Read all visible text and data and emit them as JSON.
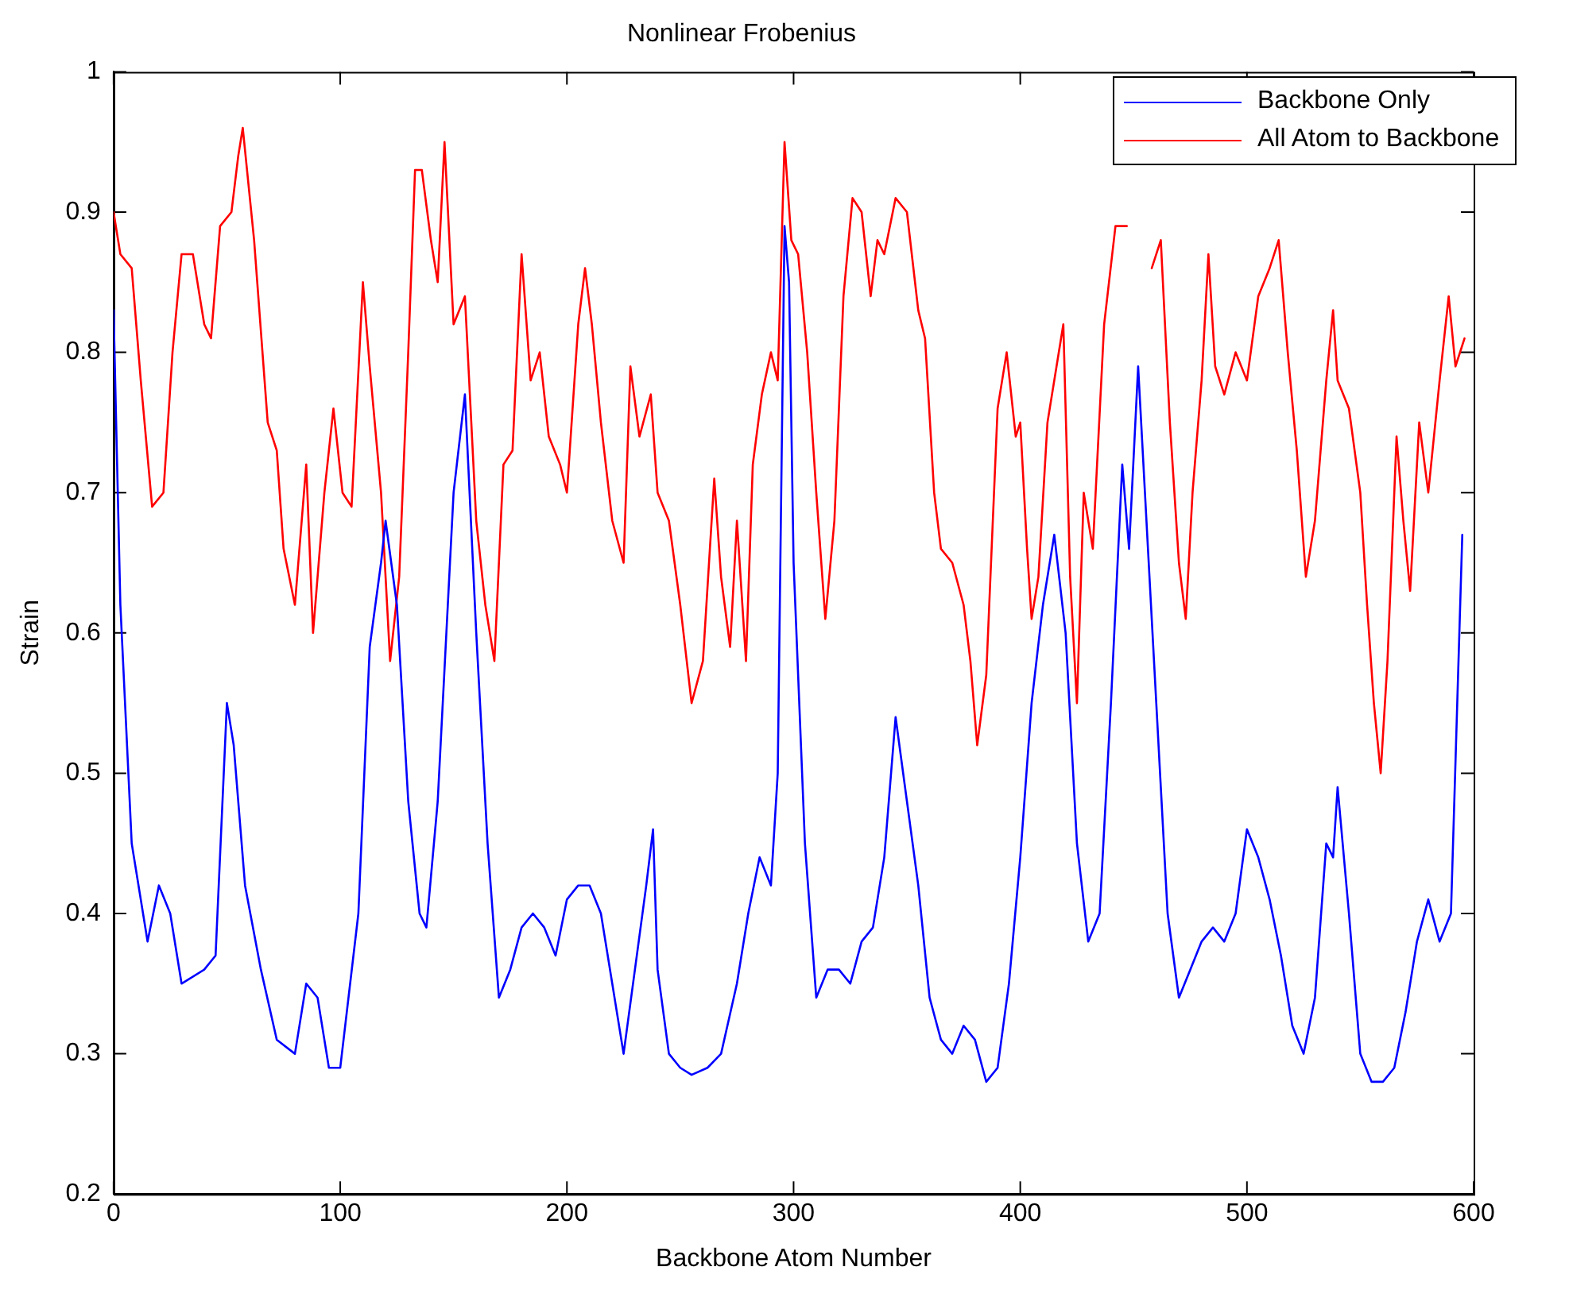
{
  "chart_data": {
    "type": "line",
    "title": "Nonlinear Frobenius",
    "xlabel": "Backbone Atom Number",
    "ylabel": "Strain",
    "xlim": [
      0,
      600
    ],
    "xticks": [
      0,
      100,
      200,
      300,
      400,
      500,
      600
    ],
    "ylim": [
      0.2,
      1
    ],
    "yticks": [
      0.2,
      0.3,
      0.4,
      0.5,
      0.6,
      0.7,
      0.8,
      0.9,
      1
    ],
    "grid": false,
    "legend": "top right",
    "marker": "none",
    "line_style": "solid",
    "series": [
      {
        "name": "Backbone Only",
        "color": "#0000ff",
        "x": [
          0,
          3,
          8,
          15,
          20,
          25,
          30,
          40,
          45,
          50,
          53,
          58,
          65,
          72,
          80,
          85,
          90,
          95,
          100,
          108,
          113,
          118,
          120,
          125,
          130,
          135,
          138,
          143,
          150,
          155,
          160,
          165,
          170,
          175,
          180,
          185,
          190,
          195,
          200,
          205,
          210,
          215,
          220,
          225,
          230,
          235,
          238,
          240,
          245,
          250,
          255,
          262,
          268,
          275,
          280,
          285,
          290,
          293,
          296,
          298,
          300,
          305,
          310,
          315,
          320,
          325,
          330,
          335,
          340,
          345,
          350,
          355,
          360,
          365,
          370,
          375,
          380,
          385,
          390,
          395,
          400,
          405,
          410,
          415,
          420,
          425,
          430,
          435,
          440,
          445,
          448,
          452,
          455,
          460,
          465,
          470,
          475,
          480,
          485,
          490,
          495,
          500,
          505,
          510,
          515,
          520,
          525,
          530,
          535,
          538,
          540,
          545,
          550,
          555,
          560,
          565,
          570,
          575,
          580,
          585,
          590,
          595
        ],
        "values": [
          0.83,
          0.62,
          0.45,
          0.38,
          0.42,
          0.4,
          0.35,
          0.36,
          0.37,
          0.55,
          0.52,
          0.42,
          0.36,
          0.31,
          0.3,
          0.35,
          0.34,
          0.29,
          0.29,
          0.4,
          0.59,
          0.65,
          0.68,
          0.62,
          0.48,
          0.4,
          0.39,
          0.48,
          0.7,
          0.77,
          0.6,
          0.45,
          0.34,
          0.36,
          0.39,
          0.4,
          0.39,
          0.37,
          0.41,
          0.42,
          0.42,
          0.4,
          0.35,
          0.3,
          0.36,
          0.42,
          0.46,
          0.36,
          0.3,
          0.29,
          0.285,
          0.29,
          0.3,
          0.35,
          0.4,
          0.44,
          0.42,
          0.5,
          0.89,
          0.85,
          0.65,
          0.45,
          0.34,
          0.36,
          0.36,
          0.35,
          0.38,
          0.39,
          0.44,
          0.54,
          0.48,
          0.42,
          0.34,
          0.31,
          0.3,
          0.32,
          0.31,
          0.28,
          0.29,
          0.35,
          0.44,
          0.55,
          0.62,
          0.67,
          0.6,
          0.45,
          0.38,
          0.4,
          0.55,
          0.72,
          0.66,
          0.79,
          0.7,
          0.55,
          0.4,
          0.34,
          0.36,
          0.38,
          0.39,
          0.38,
          0.4,
          0.46,
          0.44,
          0.41,
          0.37,
          0.32,
          0.3,
          0.34,
          0.45,
          0.44,
          0.49,
          0.4,
          0.3,
          0.28,
          0.28,
          0.29,
          0.33,
          0.38,
          0.41,
          0.38,
          0.4,
          0.67
        ]
      },
      {
        "name": "All Atom to Backbone",
        "color": "#ff0000",
        "x": [
          0,
          3,
          8,
          12,
          17,
          22,
          26,
          30,
          35,
          40,
          43,
          47,
          52,
          55,
          57,
          62,
          68,
          72,
          75,
          80,
          85,
          88,
          93,
          97,
          101,
          105,
          110,
          113,
          118,
          122,
          126,
          130,
          133,
          136,
          140,
          143,
          146,
          150,
          155,
          160,
          164,
          168,
          172,
          176,
          180,
          184,
          188,
          192,
          197,
          200,
          205,
          208,
          211,
          215,
          220,
          225,
          228,
          232,
          237,
          240,
          245,
          250,
          255,
          260,
          265,
          268,
          272,
          275,
          279,
          282,
          286,
          290,
          293,
          296,
          299,
          302,
          306,
          310,
          314,
          318,
          322,
          326,
          330,
          334,
          337,
          340,
          345,
          350,
          355,
          358,
          362,
          365,
          370,
          375,
          378,
          381,
          385,
          390,
          394,
          398,
          400,
          403,
          405,
          408,
          412,
          416,
          419,
          422,
          425,
          428,
          432,
          437,
          442,
          447,
          450,
          455,
          458,
          462,
          466,
          470,
          473,
          476,
          480,
          483,
          486,
          490,
          495,
          500,
          505,
          510,
          514,
          518,
          522,
          526,
          530,
          535,
          538,
          540,
          545,
          550,
          553,
          556,
          559,
          562,
          566,
          569,
          572,
          576,
          580,
          585,
          589,
          592,
          596
        ],
        "values": [
          0.9,
          0.87,
          0.86,
          0.78,
          0.69,
          0.7,
          0.8,
          0.87,
          0.87,
          0.82,
          0.81,
          0.89,
          0.9,
          0.94,
          0.96,
          0.88,
          0.75,
          0.73,
          0.66,
          0.62,
          0.72,
          0.6,
          0.7,
          0.76,
          0.7,
          0.69,
          0.85,
          0.79,
          0.7,
          0.58,
          0.64,
          0.8,
          0.93,
          0.93,
          0.88,
          0.85,
          0.95,
          0.82,
          0.84,
          0.68,
          0.62,
          0.58,
          0.72,
          0.73,
          0.87,
          0.78,
          0.8,
          0.74,
          0.72,
          0.7,
          0.82,
          0.86,
          0.82,
          0.75,
          0.68,
          0.65,
          0.79,
          0.74,
          0.77,
          0.7,
          0.68,
          0.62,
          0.55,
          0.58,
          0.71,
          0.64,
          0.59,
          0.68,
          0.58,
          0.72,
          0.77,
          0.8,
          0.78,
          0.95,
          0.88,
          0.87,
          0.8,
          0.7,
          0.61,
          0.68,
          0.84,
          0.91,
          0.9,
          0.84,
          0.88,
          0.87,
          0.91,
          0.9,
          0.83,
          0.81,
          0.7,
          0.66,
          0.65,
          0.62,
          0.58,
          0.52,
          0.57,
          0.76,
          0.8,
          0.74,
          0.75,
          0.66,
          0.61,
          0.64,
          0.75,
          0.79,
          0.82,
          0.64,
          0.55,
          0.7,
          0.66,
          0.82,
          0.89,
          0.89,
          null,
          null,
          0.86,
          0.88,
          0.75,
          0.65,
          0.61,
          0.7,
          0.78,
          0.87,
          0.79,
          0.77,
          0.8,
          0.78,
          0.84,
          0.86,
          0.88,
          0.8,
          0.73,
          0.64,
          0.68,
          0.78,
          0.83,
          0.78,
          0.76,
          0.7,
          0.62,
          0.55,
          0.5,
          0.58,
          0.74,
          0.68,
          0.63,
          0.75,
          0.7,
          0.78,
          0.84,
          0.79,
          0.81
        ]
      }
    ]
  }
}
